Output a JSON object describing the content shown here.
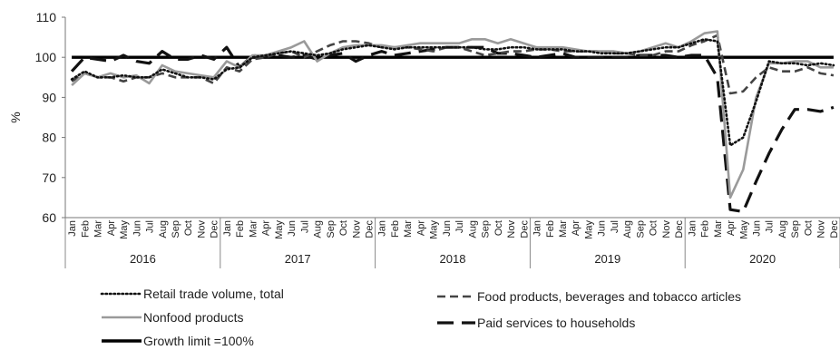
{
  "chart_data": {
    "type": "line",
    "title": "",
    "xlabel": "",
    "ylabel": "%",
    "ylim": [
      60,
      110
    ],
    "yticks": [
      60,
      70,
      80,
      90,
      100,
      110
    ],
    "grid": false,
    "legend_position": "bottom",
    "years": [
      "2016",
      "2017",
      "2018",
      "2019",
      "2020"
    ],
    "month_labels": [
      "Jan",
      "Feb",
      "Mar",
      "Apr",
      "May",
      "Jun",
      "Jul",
      "Aug",
      "Sep",
      "Oct",
      "Nov",
      "Dec"
    ],
    "series": [
      {
        "name": "Retail trade volume, total",
        "style": "dotted",
        "color": "#111111",
        "values": [
          94.5,
          96.5,
          95.0,
          95.0,
          95.5,
          95.0,
          95.0,
          97.0,
          96.0,
          95.0,
          95.0,
          94.5,
          97.0,
          97.5,
          100.0,
          100.5,
          101.0,
          101.5,
          101.0,
          100.5,
          101.0,
          102.0,
          102.5,
          103.0,
          102.5,
          102.0,
          102.5,
          102.5,
          102.5,
          102.5,
          102.5,
          102.5,
          102.0,
          102.0,
          102.5,
          102.5,
          102.0,
          102.0,
          102.0,
          101.5,
          101.5,
          101.0,
          101.0,
          101.0,
          101.5,
          102.0,
          102.5,
          102.5,
          103.5,
          104.5,
          104.0,
          78.0,
          80.0,
          89.0,
          99.0,
          98.5,
          98.5,
          98.0,
          98.5,
          98.0
        ]
      },
      {
        "name": "Food products, beverages and tobacco articles",
        "style": "dashed",
        "color": "#444444",
        "values": [
          94.0,
          96.0,
          95.0,
          95.0,
          94.0,
          95.0,
          95.0,
          96.0,
          95.0,
          95.0,
          95.0,
          93.5,
          97.5,
          96.5,
          99.5,
          100.0,
          101.0,
          101.5,
          100.0,
          101.5,
          103.0,
          104.0,
          104.0,
          103.5,
          102.5,
          102.5,
          102.5,
          102.0,
          101.5,
          102.5,
          102.5,
          101.5,
          100.5,
          101.0,
          101.5,
          101.5,
          102.0,
          102.0,
          101.5,
          101.5,
          101.5,
          101.5,
          101.0,
          101.0,
          100.5,
          100.5,
          101.5,
          101.5,
          103.0,
          104.0,
          105.5,
          91.0,
          91.5,
          95.0,
          97.5,
          96.5,
          96.5,
          97.5,
          96.0,
          95.5
        ]
      },
      {
        "name": "Nonfood products",
        "style": "solid-gray",
        "color": "#9a9a9a",
        "values": [
          93.0,
          96.0,
          95.0,
          96.0,
          95.0,
          95.5,
          93.5,
          98.0,
          96.5,
          96.0,
          95.5,
          95.0,
          99.0,
          97.5,
          100.5,
          100.5,
          101.5,
          102.5,
          104.0,
          99.0,
          101.0,
          102.5,
          103.0,
          103.0,
          103.0,
          102.5,
          103.0,
          103.5,
          103.5,
          103.5,
          103.5,
          104.5,
          104.5,
          103.5,
          104.5,
          103.5,
          102.5,
          102.5,
          102.5,
          102.0,
          101.5,
          101.5,
          101.5,
          101.0,
          101.5,
          102.5,
          103.5,
          102.5,
          104.0,
          106.0,
          106.5,
          65.0,
          72.0,
          90.0,
          98.5,
          98.5,
          99.0,
          99.0,
          97.5,
          97.5
        ]
      },
      {
        "name": "Paid services to households",
        "style": "longdash",
        "color": "#111111",
        "values": [
          96.5,
          100.0,
          99.5,
          99.0,
          100.5,
          99.0,
          98.5,
          101.5,
          99.5,
          99.5,
          100.5,
          99.5,
          102.5,
          97.5,
          100.5,
          100.0,
          100.5,
          100.0,
          100.5,
          99.5,
          100.5,
          101.0,
          99.0,
          100.5,
          101.5,
          100.5,
          101.0,
          101.5,
          102.0,
          102.5,
          102.5,
          102.5,
          102.5,
          101.0,
          101.0,
          100.5,
          100.0,
          100.5,
          101.0,
          100.0,
          100.0,
          100.0,
          100.0,
          100.0,
          100.5,
          100.5,
          100.5,
          100.0,
          100.5,
          100.5,
          95.0,
          62.0,
          61.5,
          69.0,
          76.0,
          82.0,
          87.0,
          87.0,
          86.5,
          87.5
        ]
      },
      {
        "name": "Growth limit =100%",
        "style": "thick",
        "color": "#000000",
        "values": [
          100,
          100,
          100,
          100,
          100,
          100,
          100,
          100,
          100,
          100,
          100,
          100,
          100,
          100,
          100,
          100,
          100,
          100,
          100,
          100,
          100,
          100,
          100,
          100,
          100,
          100,
          100,
          100,
          100,
          100,
          100,
          100,
          100,
          100,
          100,
          100,
          100,
          100,
          100,
          100,
          100,
          100,
          100,
          100,
          100,
          100,
          100,
          100,
          100,
          100,
          100,
          100,
          100,
          100,
          100,
          100,
          100,
          100,
          100,
          100
        ]
      }
    ]
  }
}
